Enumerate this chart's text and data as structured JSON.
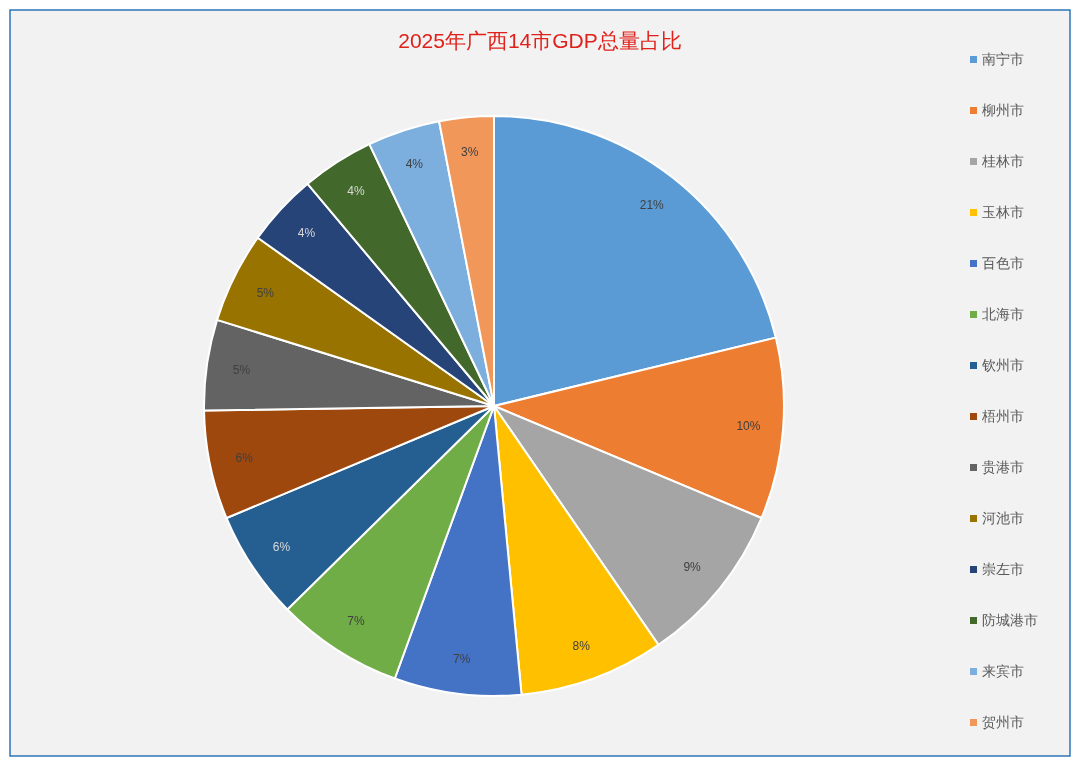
{
  "chart_data": {
    "type": "pie",
    "title": "2025年广西14市GDP总量占比",
    "categories": [
      "南宁市",
      "柳州市",
      "桂林市",
      "玉林市",
      "百色市",
      "北海市",
      "钦州市",
      "梧州市",
      "贵港市",
      "河池市",
      "崇左市",
      "防城港市",
      "来宾市",
      "贺州市"
    ],
    "values": [
      21,
      10,
      9,
      8,
      7,
      7,
      6,
      6,
      5,
      5,
      4,
      4,
      4,
      3
    ],
    "colors": [
      "#5b9bd5",
      "#ed7d31",
      "#a5a5a5",
      "#ffc000",
      "#4472c4",
      "#70ad47",
      "#255e91",
      "#9e480e",
      "#636363",
      "#997300",
      "#264478",
      "#43682b",
      "#7cafdd",
      "#f1975a"
    ],
    "value_labels": [
      "21%",
      "10%",
      "9%",
      "8%",
      "7%",
      "7%",
      "6%",
      "6%",
      "5%",
      "5%",
      "4%",
      "4%",
      "4%",
      "3%"
    ],
    "legend": "right"
  }
}
